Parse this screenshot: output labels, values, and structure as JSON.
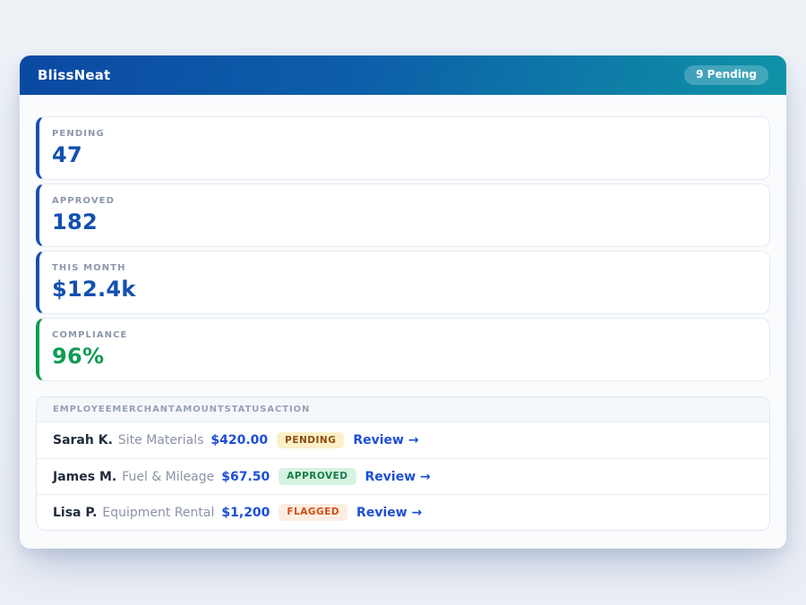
{
  "app": {
    "title": "BlissNeat",
    "header_badge": "9 Pending"
  },
  "stats": [
    {
      "label": "PENDING",
      "value": "47",
      "accent": "#1350b0"
    },
    {
      "label": "APPROVED",
      "value": "182",
      "accent": "#1350b0"
    },
    {
      "label": "THIS MONTH",
      "value": "$12.4k",
      "accent": "#1350b0"
    },
    {
      "label": "COMPLIANCE",
      "value": "96%",
      "accent": "#0d9c52"
    }
  ],
  "table": {
    "headers": [
      "EMPLOYEE",
      "MERCHANT",
      "AMOUNT",
      "STATUS",
      "ACTION"
    ],
    "rows": [
      {
        "employee": "Sarah K.",
        "merchant": "Site Materials",
        "amount": "$420.00",
        "status": "PENDING",
        "status_bg": "#fcf0c8",
        "status_fg": "#8f4a10",
        "action": "Review →"
      },
      {
        "employee": "James M.",
        "merchant": "Fuel & Mileage",
        "amount": "$67.50",
        "status": "APPROVED",
        "status_bg": "#d6f2e1",
        "status_fg": "#177d48",
        "action": "Review →"
      },
      {
        "employee": "Lisa P.",
        "merchant": "Equipment Rental",
        "amount": "$1,200",
        "status": "FLAGGED",
        "status_bg": "#fdeee2",
        "status_fg": "#d54b0e",
        "action": "Review →"
      }
    ]
  },
  "colors": {
    "header_gradient_start": "#0b49a3",
    "header_gradient_end": "#0e93a6",
    "stat_value_blue": "#1350b0",
    "stat_value_green": "#0d9c52",
    "link_blue": "#1d4ed8",
    "page_background": "#edf1f7"
  }
}
